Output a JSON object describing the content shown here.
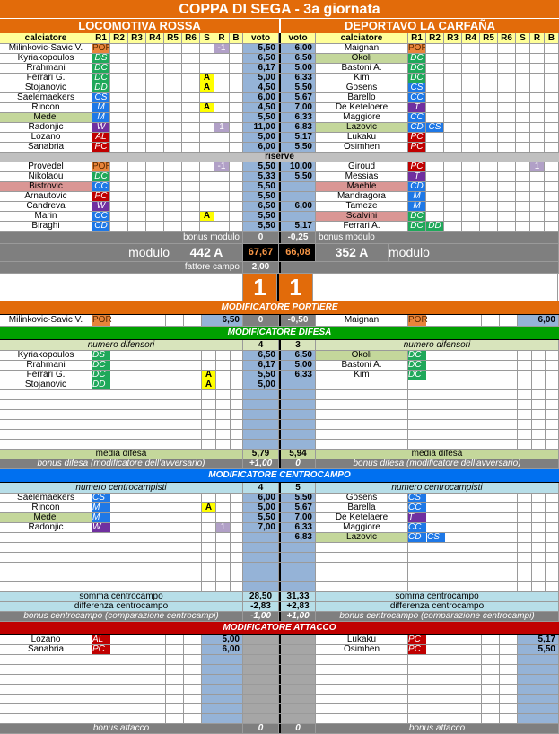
{
  "title": "COPPA DI SEGA - 3a giornata",
  "colors": {
    "accent": "#e26b0a",
    "voto": "#95b3d7",
    "portiere": "#e26b0a",
    "difesa": "#00a000",
    "centrocampo": "#0070f0",
    "attacco": "#c00000"
  },
  "role_colors": {
    "POR": "#e8843a",
    "DS": "#1fa85a",
    "DC": "#1fa85a",
    "DD": "#1fa85a",
    "CS": "#1e78e6",
    "CC": "#1e78e6",
    "CD": "#1e78e6",
    "M": "#1e78e6",
    "W": "#7030a0",
    "T": "#7030a0",
    "AL": "#c00000",
    "PC": "#c00000"
  },
  "columns": {
    "player": "calciatore",
    "r": [
      "R1",
      "R2",
      "R3",
      "R4",
      "R5",
      "R6"
    ],
    "s": "S",
    "rr": "R",
    "b": "B",
    "voto": "voto"
  },
  "reserves_label": "riserve",
  "left": {
    "team": "LOCOMOTIVA ROSSA",
    "starters": [
      {
        "name": "Milinkovic-Savic V.",
        "roles": [
          "POR"
        ],
        "s": "",
        "r": "-1",
        "voto": "5,50"
      },
      {
        "name": "Kyriakopoulos",
        "roles": [
          "DS"
        ],
        "s": "",
        "r": "",
        "voto": "6,50"
      },
      {
        "name": "Rrahmani",
        "roles": [
          "DC"
        ],
        "s": "",
        "r": "",
        "voto": "6,17"
      },
      {
        "name": "Ferrari G.",
        "roles": [
          "DC"
        ],
        "s": "A",
        "r": "",
        "voto": "5,00"
      },
      {
        "name": "Stojanovic",
        "roles": [
          "DD"
        ],
        "s": "A",
        "r": "",
        "voto": "4,50"
      },
      {
        "name": "Saelemaekers",
        "roles": [
          "CS"
        ],
        "s": "",
        "r": "",
        "voto": "6,00"
      },
      {
        "name": "Rincon",
        "roles": [
          "M"
        ],
        "s": "A",
        "r": "",
        "voto": "4,50"
      },
      {
        "name": "Medel",
        "roles": [
          "M"
        ],
        "s": "",
        "r": "",
        "voto": "5,50",
        "hl": "g"
      },
      {
        "name": "Radonjic",
        "roles": [
          "W"
        ],
        "s": "",
        "r": "1",
        "voto": "11,00"
      },
      {
        "name": "Lozano",
        "roles": [
          "AL"
        ],
        "s": "",
        "r": "",
        "voto": "5,00"
      },
      {
        "name": "Sanabria",
        "roles": [
          "PC"
        ],
        "s": "",
        "r": "",
        "voto": "6,00"
      }
    ],
    "reserves": [
      {
        "name": "Provedel",
        "roles": [
          "POR"
        ],
        "s": "",
        "r": "-1",
        "voto": "5,50"
      },
      {
        "name": "Nikolaou",
        "roles": [
          "DC"
        ],
        "s": "",
        "r": "",
        "voto": "5,33"
      },
      {
        "name": "Bistrovic",
        "roles": [
          "CC"
        ],
        "s": "",
        "r": "",
        "voto": "5,50",
        "hl": "p"
      },
      {
        "name": "Arnautovic",
        "roles": [
          "PC"
        ],
        "s": "",
        "r": "",
        "voto": "5,50"
      },
      {
        "name": "Candreva",
        "roles": [
          "W"
        ],
        "s": "",
        "r": "",
        "voto": "6,50"
      },
      {
        "name": "Marin",
        "roles": [
          "CC"
        ],
        "s": "A",
        "r": "",
        "voto": "5,50"
      },
      {
        "name": "Biraghi",
        "roles": [
          "CD"
        ],
        "s": "",
        "r": "",
        "voto": "5,50"
      }
    ],
    "bonus_modulo_label": "bonus modulo",
    "bonus_modulo": "0",
    "modulo_label": "modulo",
    "modulo": "442 A",
    "total": "67,67",
    "fattore_campo_label": "fattore campo",
    "fattore_campo": "2,00",
    "score": "1"
  },
  "right": {
    "team": "DEPORTAVO LA CARFAÑA",
    "starters": [
      {
        "name": "Maignan",
        "roles": [
          "POR"
        ],
        "s": "",
        "r": "",
        "voto": "6,00"
      },
      {
        "name": "Okoli",
        "roles": [
          "DC"
        ],
        "s": "",
        "r": "",
        "voto": "6,50",
        "hl": "g"
      },
      {
        "name": "Bastoni A.",
        "roles": [
          "DC"
        ],
        "s": "",
        "r": "",
        "voto": "5,00"
      },
      {
        "name": "Kim",
        "roles": [
          "DC"
        ],
        "s": "",
        "r": "",
        "voto": "6,33"
      },
      {
        "name": "Gosens",
        "roles": [
          "CS"
        ],
        "s": "",
        "r": "",
        "voto": "5,50"
      },
      {
        "name": "Barello",
        "roles": [
          "CC"
        ],
        "s": "",
        "r": "",
        "voto": "5,67"
      },
      {
        "name": "De Keteloere",
        "roles": [
          "T"
        ],
        "s": "",
        "r": "",
        "voto": "7,00"
      },
      {
        "name": "Maggiore",
        "roles": [
          "CC"
        ],
        "s": "",
        "r": "",
        "voto": "6,33"
      },
      {
        "name": "Lazovic",
        "roles": [
          "CD",
          "CS"
        ],
        "s": "",
        "r": "",
        "voto": "6,83",
        "hl": "g"
      },
      {
        "name": "Lukaku",
        "roles": [
          "PC"
        ],
        "s": "",
        "r": "",
        "voto": "5,17"
      },
      {
        "name": "Osimhen",
        "roles": [
          "PC"
        ],
        "s": "",
        "r": "",
        "voto": "5,50"
      }
    ],
    "reserves": [
      {
        "name": "Giroud",
        "roles": [
          "PC"
        ],
        "s": "",
        "r": "1",
        "voto": "10,00"
      },
      {
        "name": "Messias",
        "roles": [
          "T"
        ],
        "s": "",
        "r": "",
        "voto": "5,50"
      },
      {
        "name": "Maehle",
        "roles": [
          "CD"
        ],
        "s": "",
        "r": "",
        "voto": "",
        "hl": "p"
      },
      {
        "name": "Mandragora",
        "roles": [
          "M"
        ],
        "s": "",
        "r": "",
        "voto": ""
      },
      {
        "name": "Tameze",
        "roles": [
          "M"
        ],
        "s": "",
        "r": "",
        "voto": "6,00"
      },
      {
        "name": "Scalvini",
        "roles": [
          "DC"
        ],
        "s": "",
        "r": "",
        "voto": "",
        "hl": "p"
      },
      {
        "name": "Ferrari A.",
        "roles": [
          "DC",
          "DD"
        ],
        "s": "",
        "r": "",
        "voto": "5,17"
      }
    ],
    "bonus_modulo_label": "bonus modulo",
    "bonus_modulo": "-0,25",
    "modulo_label": "modulo",
    "modulo": "352 A",
    "total": "66,08",
    "score": "1"
  },
  "portiere": {
    "title": "MODIFICATORE PORTIERE",
    "left": {
      "name": "Milinkovic-Savic V.",
      "roles": [
        "POR"
      ],
      "voto": "6,50",
      "mod": "0"
    },
    "right": {
      "name": "Maignan",
      "roles": [
        "POR"
      ],
      "voto": "6,00",
      "mod": "-0,50"
    }
  },
  "difesa": {
    "title": "MODIFICATORE DIFESA",
    "count_label": "numero difensori",
    "left_count": "4",
    "right_count": "3",
    "left": [
      {
        "name": "Kyriakopoulos",
        "roles": [
          "DS"
        ],
        "s": "",
        "r": "",
        "voto": "6,50"
      },
      {
        "name": "Rrahmani",
        "roles": [
          "DC"
        ],
        "s": "",
        "r": "",
        "voto": "6,17"
      },
      {
        "name": "Ferrari G.",
        "roles": [
          "DC"
        ],
        "s": "A",
        "r": "",
        "voto": "5,50"
      },
      {
        "name": "Stojanovic",
        "roles": [
          "DD"
        ],
        "s": "A",
        "r": "",
        "voto": "5,00"
      }
    ],
    "right": [
      {
        "name": "Okoli",
        "roles": [
          "DC"
        ],
        "voto": "6,50",
        "hl": "g"
      },
      {
        "name": "Bastoni A.",
        "roles": [
          "DC"
        ],
        "voto": "5,00"
      },
      {
        "name": "Kim",
        "roles": [
          "DC"
        ],
        "voto": "6,33"
      }
    ],
    "avg_label": "media difesa",
    "left_avg": "5,79",
    "right_avg": "5,94",
    "bonus_label": "bonus difesa (modificatore dell'avversario)",
    "left_bonus": "+1,00",
    "right_bonus": "0"
  },
  "centrocampo": {
    "title": "MODIFICATORE CENTROCAMPO",
    "count_label": "numero centrocampisti",
    "left_count": "4",
    "right_count": "5",
    "left": [
      {
        "name": "Saelemaekers",
        "roles": [
          "CS"
        ],
        "s": "",
        "r": "",
        "voto": "6,00"
      },
      {
        "name": "Rincon",
        "roles": [
          "M"
        ],
        "s": "A",
        "r": "",
        "voto": "5,00"
      },
      {
        "name": "Medel",
        "roles": [
          "M"
        ],
        "s": "",
        "r": "",
        "voto": "5,50",
        "hl": "g"
      },
      {
        "name": "Radonjic",
        "roles": [
          "W"
        ],
        "s": "",
        "r": "1",
        "voto": "7,00"
      }
    ],
    "right": [
      {
        "name": "Gosens",
        "roles": [
          "CS"
        ],
        "voto": "5,50"
      },
      {
        "name": "Barella",
        "roles": [
          "CC"
        ],
        "voto": "5,67"
      },
      {
        "name": "De Ketelaere",
        "roles": [
          "T"
        ],
        "voto": "7,00"
      },
      {
        "name": "Maggiore",
        "roles": [
          "CC"
        ],
        "voto": "6,33"
      },
      {
        "name": "Lazovic",
        "roles": [
          "CD",
          "CS"
        ],
        "voto": "6,83",
        "hl": "g"
      }
    ],
    "sum_label": "somma centrocampo",
    "left_sum": "28,50",
    "right_sum": "31,33",
    "diff_label": "differenza centrocampo",
    "left_diff": "-2,83",
    "right_diff": "+2,83",
    "bonus_label": "bonus centrocampo (comparazione centrocampi)",
    "left_bonus": "-1,00",
    "right_bonus": "+1,00"
  },
  "attacco": {
    "title": "MODIFICATORE ATTACCO",
    "left": [
      {
        "name": "Lozano",
        "roles": [
          "AL"
        ],
        "voto": "5,00"
      },
      {
        "name": "Sanabria",
        "roles": [
          "PC"
        ],
        "voto": "6,00"
      }
    ],
    "right": [
      {
        "name": "Lukaku",
        "roles": [
          "PC"
        ],
        "voto": "5,17"
      },
      {
        "name": "Osimhen",
        "roles": [
          "PC"
        ],
        "voto": "5,50"
      }
    ],
    "bonus_label": "bonus attacco",
    "left_bonus": "0",
    "right_bonus": "0"
  }
}
